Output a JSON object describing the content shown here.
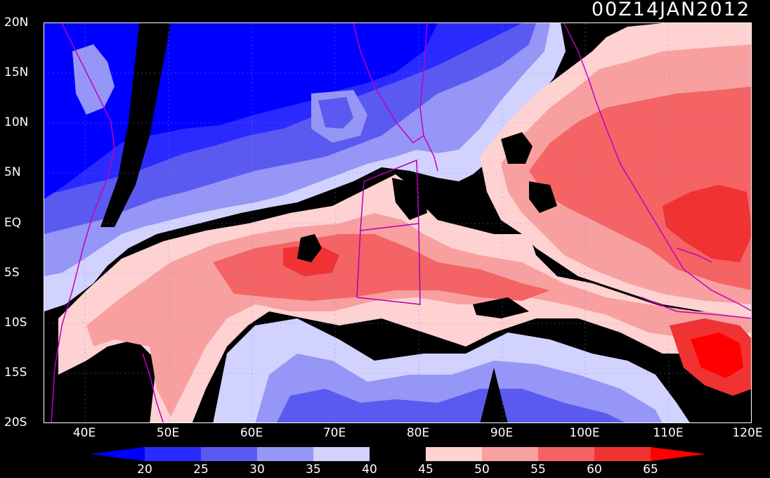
{
  "timestamp": "00Z14JAN2012",
  "lat_labels": [
    "20N",
    "15N",
    "10N",
    "5N",
    "EQ",
    "5S",
    "10S",
    "15S",
    "20S"
  ],
  "lon_labels": [
    "40E",
    "50E",
    "60E",
    "70E",
    "80E",
    "90E",
    "100E",
    "110E",
    "120E"
  ],
  "colorbar": {
    "labels": [
      "20",
      "25",
      "30",
      "35",
      "40",
      "45",
      "50",
      "55",
      "60",
      "65"
    ],
    "colors": {
      "lt20": "#0000ff",
      "c20_25": "#2a2aff",
      "c25_30": "#5a5af0",
      "c30_35": "#9696f6",
      "c35_40": "#d2d2ff",
      "c40_45": "#000000",
      "c45_50": "#ffd2d2",
      "c50_55": "#f8a0a0",
      "c55_60": "#f46464",
      "c60_65": "#f03232",
      "gt65": "#ff0000"
    }
  },
  "map_colors": {
    "background": "#000000",
    "coastline": "#c000c0",
    "box_outline": "#b000b0",
    "grid": "#8080ff"
  }
}
